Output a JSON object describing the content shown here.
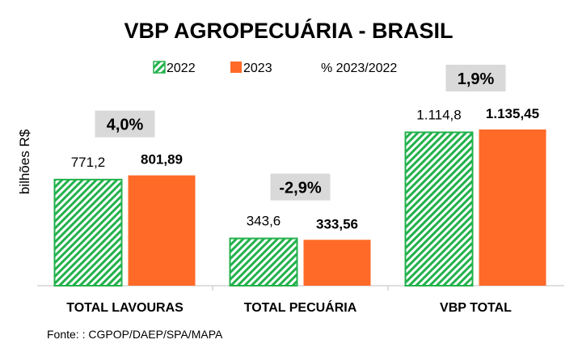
{
  "chart_data": {
    "type": "bar",
    "title": "VBP AGROPECUÁRIA  - BRASIL",
    "ylabel": "bilhões R$",
    "categories": [
      "TOTAL LAVOURAS",
      "TOTAL PECUÁRIA",
      "VBP TOTAL"
    ],
    "series": [
      {
        "name": "2022",
        "values": [
          771.2,
          343.6,
          1114.8
        ],
        "labels": [
          "771,2",
          "343,6",
          "1.114,8"
        ],
        "color": "#22b14c",
        "pattern": "diagonal-hatch"
      },
      {
        "name": "2023",
        "values": [
          801.89,
          333.56,
          1135.45
        ],
        "labels": [
          "801,89",
          "333,56",
          "1.135,45"
        ],
        "color": "#ff6a28"
      }
    ],
    "change_legend": "% 2023/2022",
    "changes": [
      "4,0%",
      "-2,9%",
      "1,9%"
    ],
    "ylim": [
      0,
      1250
    ],
    "grid": false,
    "legend_position": "top-center"
  },
  "source": "Fonte: : CGPOP/DAEP/SPA/MAPA"
}
